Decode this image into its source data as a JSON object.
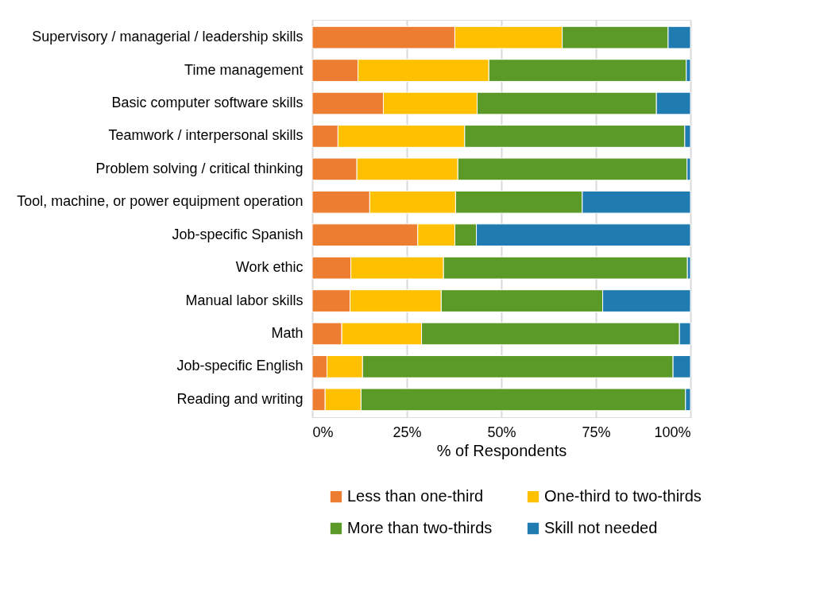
{
  "chart_data": {
    "type": "bar",
    "orientation": "horizontal",
    "stacked": true,
    "xlabel": "% of Respondents",
    "categories": [
      "Supervisory / managerial / leadership skills",
      "Time management",
      "Basic computer software skills",
      "Teamwork / interpersonal skills",
      "Problem solving / critical thinking",
      "Tool, machine, or power equipment operation",
      "Job-specific Spanish",
      "Work ethic",
      "Manual labor skills",
      "Math",
      "Job-specific English",
      "Reading and writing"
    ],
    "series": [
      {
        "name": "Less than one-third",
        "color": "#ed7d31",
        "values": [
          37.7,
          12.1,
          18.8,
          6.8,
          11.8,
          15.2,
          27.9,
          10.2,
          10.0,
          7.8,
          3.9,
          3.4
        ]
      },
      {
        "name": "One-third to two-thirds",
        "color": "#ffc000",
        "values": [
          28.4,
          34.6,
          24.8,
          33.5,
          26.7,
          22.7,
          9.8,
          24.5,
          24.1,
          21.1,
          9.4,
          9.5
        ]
      },
      {
        "name": "More than two-thirds",
        "color": "#5b9a27",
        "values": [
          28.0,
          52.2,
          47.4,
          58.2,
          60.6,
          33.5,
          5.7,
          64.5,
          42.7,
          68.2,
          82.1,
          85.8
        ]
      },
      {
        "name": "Skill not needed",
        "color": "#1f7bb0",
        "values": [
          5.9,
          1.1,
          9.0,
          1.5,
          0.9,
          28.6,
          56.6,
          0.8,
          23.2,
          2.9,
          4.6,
          1.3
        ]
      }
    ],
    "xlim": [
      0,
      100
    ],
    "xticks": [
      {
        "value": 0,
        "label": "0%"
      },
      {
        "value": 25,
        "label": "25%"
      },
      {
        "value": 50,
        "label": "50%"
      },
      {
        "value": 75,
        "label": "75%"
      },
      {
        "value": 100,
        "label": "100%"
      }
    ],
    "grid": "x",
    "legend": "bottom"
  }
}
